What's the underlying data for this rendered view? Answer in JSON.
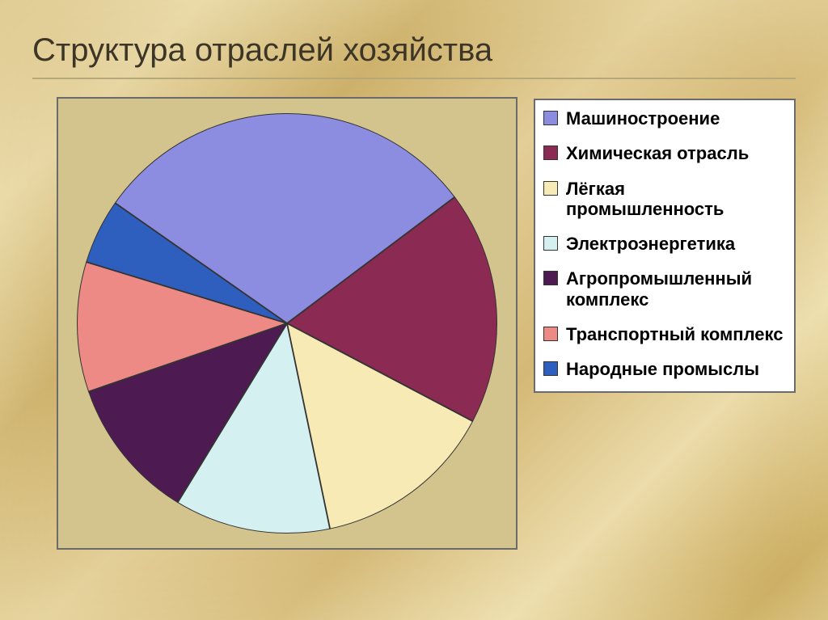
{
  "title": "Структура отраслей хозяйства",
  "title_fontsize": 40,
  "title_color": "#3d3626",
  "title_underline_color": "#b7a87a",
  "background_gradient": [
    "#e8d6a5",
    "#e2cc94",
    "#efe2bb",
    "#d9bf82",
    "#e7d6a3",
    "#cdb06a",
    "#e3ce97",
    "#d4b876",
    "#ecdcab",
    "#c9a95b",
    "#e0ca8f",
    "#dbc17f",
    "#e9d9a6"
  ],
  "chart": {
    "type": "pie",
    "plot_background_color": "#d3c48e",
    "plot_border_color": "#6b6b6b",
    "pie_border_color": "#333333",
    "start_angle_deg": -55,
    "direction": "clockwise",
    "slices": [
      {
        "label": "Машиностроение",
        "value": 30,
        "color": "#8c8ce0"
      },
      {
        "label": "Химическая отрасль",
        "value": 18,
        "color": "#8b2a52"
      },
      {
        "label": "Лёгкая промышленность",
        "value": 14,
        "color": "#f8eab4"
      },
      {
        "label": "Электроэнергетика",
        "value": 12,
        "color": "#d4f0f0"
      },
      {
        "label": "Агропромышленный комплекс",
        "value": 11,
        "color": "#4d1a52"
      },
      {
        "label": "Транспортный комплекс",
        "value": 10,
        "color": "#ed8a85"
      },
      {
        "label": "Народные промыслы",
        "value": 5,
        "color": "#2e5fbf"
      }
    ]
  },
  "legend": {
    "background_color": "#ffffff",
    "border_color": "#6b6b6b",
    "label_fontsize": 22,
    "label_fontweight": 700,
    "swatch_size": 18,
    "swatch_border_color": "#333333",
    "items": [
      {
        "label": "Машиностроение",
        "color": "#8c8ce0"
      },
      {
        "label": "Химическая отрасль",
        "color": "#8b2a52"
      },
      {
        "label": "Лёгкая промышленность",
        "color": "#f8eab4"
      },
      {
        "label": "Электроэнергетика",
        "color": "#d4f0f0"
      },
      {
        "label": "Агропромышленный комплекс",
        "color": "#4d1a52"
      },
      {
        "label": "Транспортный комплекс",
        "color": "#ed8a85"
      },
      {
        "label": "Народные промыслы",
        "color": "#2e5fbf"
      }
    ]
  }
}
